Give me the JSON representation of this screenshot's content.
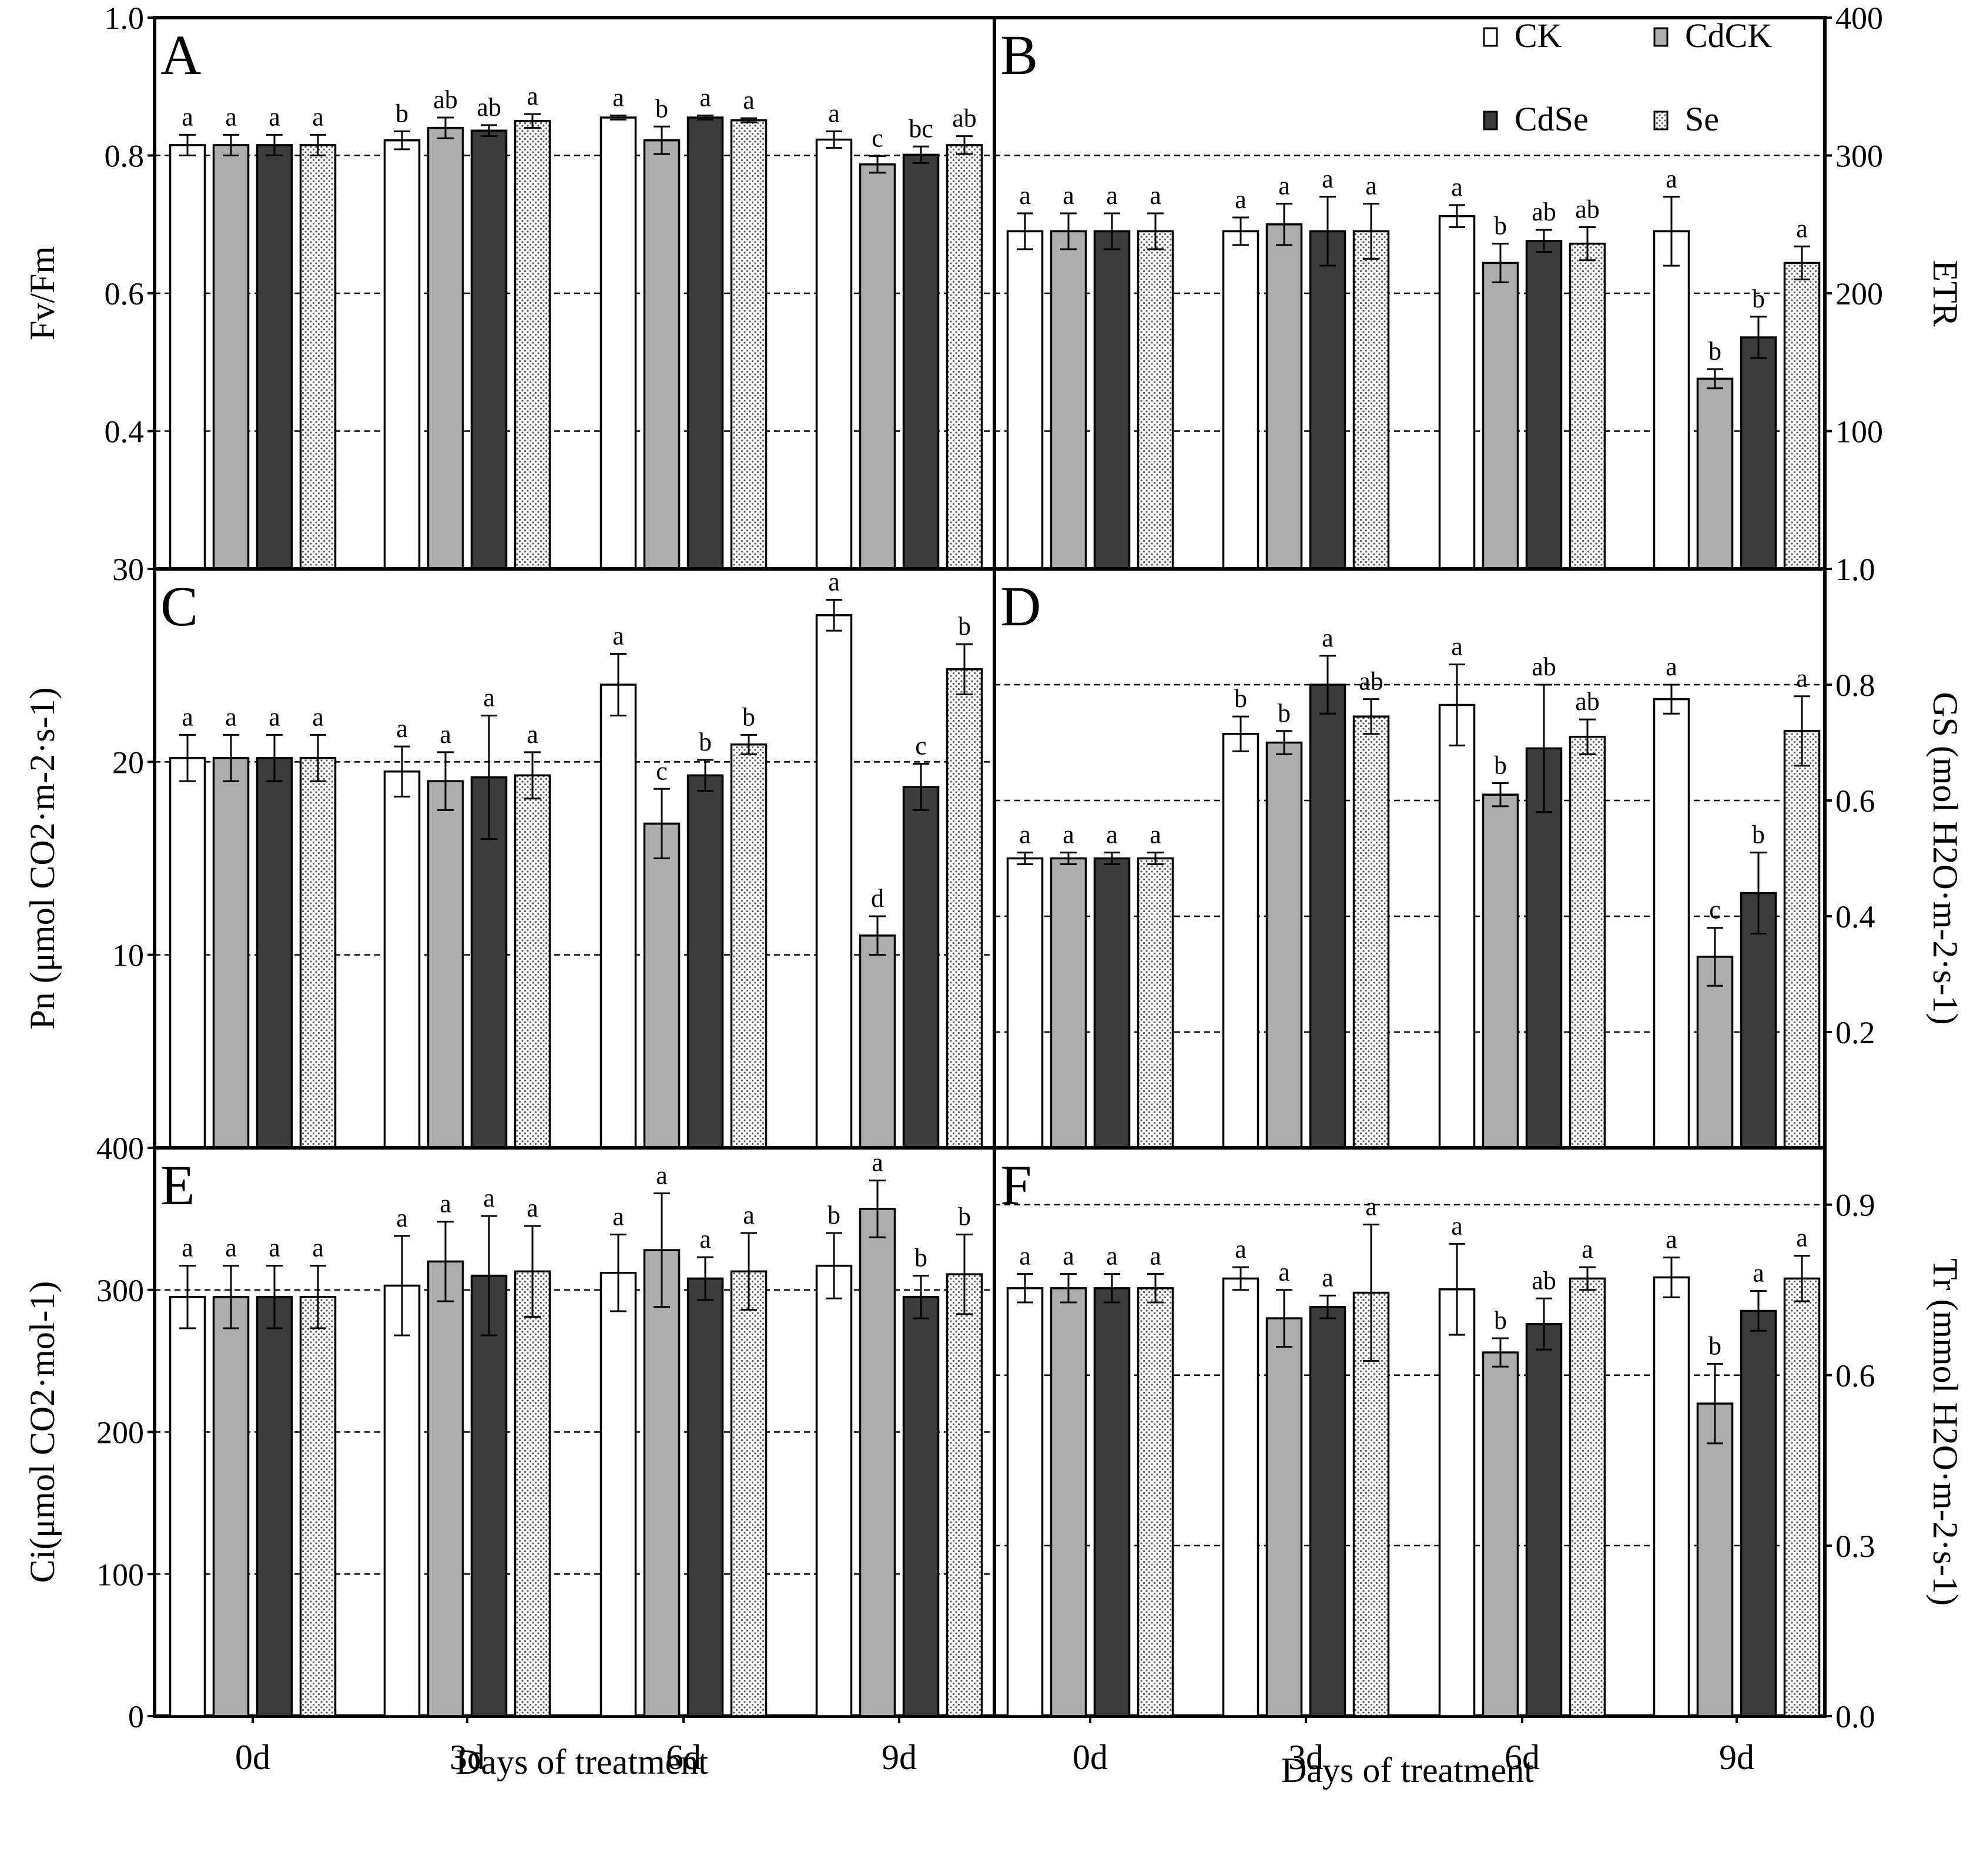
{
  "figure": {
    "x_axis_title": "Days of treatment",
    "categories": [
      "0d",
      "3d",
      "6d",
      "9d"
    ]
  },
  "legend": {
    "items": [
      {
        "name": "CK",
        "fill": "white"
      },
      {
        "name": "CdCK",
        "fill": "lightgray"
      },
      {
        "name": "CdSe",
        "fill": "dark"
      },
      {
        "name": "Se",
        "fill": "dotted"
      }
    ]
  },
  "colors": {
    "white": "#ffffff",
    "lightgray": "#adadad",
    "dark": "#3c3c3c",
    "dotted_dot": "#555555",
    "stroke": "#000000"
  },
  "chart_data": [
    {
      "type": "bar",
      "panel": "A",
      "ylabel": "Fv/Fm",
      "axis_side": "left",
      "ylim": [
        0.2,
        1.0
      ],
      "yticks": [
        "0.4",
        "0.6",
        "0.8",
        "1.0"
      ],
      "categories": [
        "0d",
        "3d",
        "6d",
        "9d"
      ],
      "series": [
        {
          "name": "CK",
          "values": [
            0.815,
            0.822,
            0.855,
            0.823
          ],
          "errors": [
            0.015,
            0.013,
            0.003,
            0.012
          ],
          "letters": [
            "a",
            "b",
            "a",
            "a"
          ]
        },
        {
          "name": "CdCK",
          "values": [
            0.815,
            0.84,
            0.822,
            0.787
          ],
          "errors": [
            0.015,
            0.015,
            0.02,
            0.012
          ],
          "letters": [
            "a",
            "ab",
            "b",
            "c"
          ]
        },
        {
          "name": "CdSe",
          "values": [
            0.815,
            0.836,
            0.855,
            0.801
          ],
          "errors": [
            0.015,
            0.008,
            0.003,
            0.012
          ],
          "letters": [
            "a",
            "ab",
            "a",
            "bc"
          ]
        },
        {
          "name": "Se",
          "values": [
            0.815,
            0.85,
            0.851,
            0.815
          ],
          "errors": [
            0.015,
            0.01,
            0.003,
            0.013
          ],
          "letters": [
            "a",
            "a",
            "a",
            "ab"
          ]
        }
      ]
    },
    {
      "type": "bar",
      "panel": "B",
      "ylabel": "ETR",
      "axis_side": "right",
      "ylim": [
        0,
        400
      ],
      "yticks": [
        "100",
        "200",
        "300",
        "400"
      ],
      "bottom_tick": "1.0",
      "categories": [
        "0d",
        "3d",
        "6d",
        "9d"
      ],
      "series": [
        {
          "name": "CK",
          "values": [
            245,
            245,
            256,
            245
          ],
          "errors": [
            13,
            10,
            8,
            25
          ],
          "letters": [
            "a",
            "a",
            "a",
            "a"
          ]
        },
        {
          "name": "CdCK",
          "values": [
            245,
            250,
            222,
            138
          ],
          "errors": [
            13,
            15,
            14,
            7
          ],
          "letters": [
            "a",
            "a",
            "b",
            "b"
          ]
        },
        {
          "name": "CdSe",
          "values": [
            245,
            245,
            238,
            168
          ],
          "errors": [
            13,
            25,
            8,
            15
          ],
          "letters": [
            "a",
            "a",
            "ab",
            "b"
          ]
        },
        {
          "name": "Se",
          "values": [
            245,
            245,
            236,
            222
          ],
          "errors": [
            13,
            20,
            12,
            12
          ],
          "letters": [
            "a",
            "a",
            "ab",
            "a"
          ]
        }
      ]
    },
    {
      "type": "bar",
      "panel": "C",
      "ylabel": "Pn (μmol CO2·m-2·s-1)",
      "axis_side": "left",
      "ylim": [
        0,
        30
      ],
      "yticks": [
        "10",
        "20",
        "30"
      ],
      "categories": [
        "0d",
        "3d",
        "6d",
        "9d"
      ],
      "series": [
        {
          "name": "CK",
          "values": [
            20.2,
            19.5,
            24.0,
            27.6
          ],
          "errors": [
            1.2,
            1.3,
            1.6,
            0.8
          ],
          "letters": [
            "a",
            "a",
            "a",
            "a"
          ]
        },
        {
          "name": "CdCK",
          "values": [
            20.2,
            19.0,
            16.8,
            11.0
          ],
          "errors": [
            1.2,
            1.5,
            1.8,
            1.0
          ],
          "letters": [
            "a",
            "a",
            "c",
            "d"
          ]
        },
        {
          "name": "CdSe",
          "values": [
            20.2,
            19.2,
            19.3,
            18.7
          ],
          "errors": [
            1.2,
            3.2,
            0.8,
            1.2
          ],
          "letters": [
            "a",
            "a",
            "b",
            "c"
          ]
        },
        {
          "name": "Se",
          "values": [
            20.2,
            19.3,
            20.9,
            24.8
          ],
          "errors": [
            1.2,
            1.2,
            0.5,
            1.3
          ],
          "letters": [
            "a",
            "a",
            "b",
            "b"
          ]
        }
      ]
    },
    {
      "type": "bar",
      "panel": "D",
      "ylabel": "GS (mol H2O·m-2·s-1)",
      "axis_side": "right",
      "ylim": [
        0,
        1.0
      ],
      "yticks": [
        "0.2",
        "0.4",
        "0.6",
        "0.8",
        "1.0"
      ],
      "categories": [
        "0d",
        "3d",
        "6d",
        "9d"
      ],
      "series": [
        {
          "name": "CK",
          "values": [
            0.5,
            0.715,
            0.765,
            0.775
          ],
          "errors": [
            0.01,
            0.03,
            0.07,
            0.025
          ],
          "letters": [
            "a",
            "b",
            "a",
            "a"
          ]
        },
        {
          "name": "CdCK",
          "values": [
            0.5,
            0.7,
            0.61,
            0.33
          ],
          "errors": [
            0.01,
            0.02,
            0.02,
            0.05
          ],
          "letters": [
            "a",
            "b",
            "b",
            "c"
          ]
        },
        {
          "name": "CdSe",
          "values": [
            0.5,
            0.8,
            0.69,
            0.44
          ],
          "errors": [
            0.01,
            0.05,
            0.11,
            0.07
          ],
          "letters": [
            "a",
            "a",
            "ab",
            "b"
          ]
        },
        {
          "name": "Se",
          "values": [
            0.5,
            0.745,
            0.71,
            0.72
          ],
          "errors": [
            0.01,
            0.03,
            0.03,
            0.06
          ],
          "letters": [
            "a",
            "ab",
            "ab",
            "a"
          ]
        }
      ]
    },
    {
      "type": "bar",
      "panel": "E",
      "ylabel": "Ci(μmol CO2·mol-1)",
      "axis_side": "left",
      "ylim": [
        0,
        400
      ],
      "yticks": [
        "0",
        "100",
        "200",
        "300",
        "400"
      ],
      "categories": [
        "0d",
        "3d",
        "6d",
        "9d"
      ],
      "series": [
        {
          "name": "CK",
          "values": [
            295,
            303,
            312,
            317
          ],
          "errors": [
            22,
            35,
            27,
            23
          ],
          "letters": [
            "a",
            "a",
            "a",
            "b"
          ]
        },
        {
          "name": "CdCK",
          "values": [
            295,
            320,
            328,
            357
          ],
          "errors": [
            22,
            28,
            40,
            20
          ],
          "letters": [
            "a",
            "a",
            "a",
            "a"
          ]
        },
        {
          "name": "CdSe",
          "values": [
            295,
            310,
            308,
            295
          ],
          "errors": [
            22,
            42,
            15,
            15
          ],
          "letters": [
            "a",
            "a",
            "a",
            "b"
          ]
        },
        {
          "name": "Se",
          "values": [
            295,
            313,
            313,
            311
          ],
          "errors": [
            22,
            32,
            27,
            28
          ],
          "letters": [
            "a",
            "a",
            "a",
            "b"
          ]
        }
      ]
    },
    {
      "type": "bar",
      "panel": "F",
      "ylabel": "Tr (mmol H2O·m-2·s-1)",
      "axis_side": "right",
      "ylim": [
        0,
        1.0
      ],
      "yticks": [
        "0.0",
        "0.3",
        "0.6",
        "0.9"
      ],
      "categories": [
        "0d",
        "3d",
        "6d",
        "9d"
      ],
      "series": [
        {
          "name": "CK",
          "values": [
            0.753,
            0.77,
            0.751,
            0.772
          ],
          "errors": [
            0.025,
            0.02,
            0.08,
            0.035
          ],
          "letters": [
            "a",
            "a",
            "a",
            "a"
          ]
        },
        {
          "name": "CdCK",
          "values": [
            0.753,
            0.7,
            0.64,
            0.55
          ],
          "errors": [
            0.025,
            0.05,
            0.025,
            0.07
          ],
          "letters": [
            "a",
            "a",
            "b",
            "b"
          ]
        },
        {
          "name": "CdSe",
          "values": [
            0.753,
            0.72,
            0.69,
            0.713
          ],
          "errors": [
            0.025,
            0.02,
            0.045,
            0.035
          ],
          "letters": [
            "a",
            "a",
            "ab",
            "a"
          ]
        },
        {
          "name": "Se",
          "values": [
            0.753,
            0.745,
            0.77,
            0.77
          ],
          "errors": [
            0.025,
            0.12,
            0.02,
            0.04
          ],
          "letters": [
            "a",
            "a",
            "a",
            "a"
          ]
        }
      ]
    }
  ]
}
